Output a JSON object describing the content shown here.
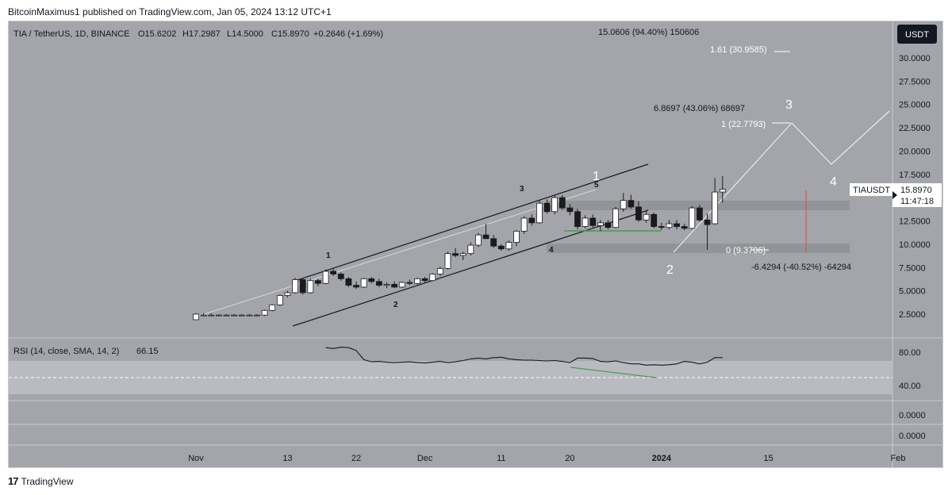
{
  "header": {
    "published": "BitcoinMaximus1 published on TradingView.com, Jan 05, 2024 13:12 UTC+1"
  },
  "symbol": {
    "title": "TIA / TetherUS, 1D, BINANCE",
    "open": "O15.6202",
    "high": "H17.2987",
    "low": "L14.5000",
    "close": "C15.8970",
    "change": "+0.2646 (+1.69%)",
    "currency": "USDT",
    "ticker": "TIAUSDT",
    "price": "15.8970",
    "countdown": "11:47:18"
  },
  "annotations": {
    "range_top": "15.0606 (94.40%) 150606",
    "fib_161": "1.61 (30.9585)",
    "range_mid": "6.8697 (43.06%) 68697",
    "fib_1": "1 (22.7793)",
    "fib_0": "0 (9.3706)",
    "range_down": "-6.4294 (-40.52%) -64294",
    "wave_1": "1",
    "wave_2": "2",
    "wave_3": "3",
    "wave_4": "4",
    "wave_5": "5",
    "big_wave_1": "1",
    "big_wave_2": "2",
    "big_wave_3": "3",
    "big_wave_4": "4"
  },
  "rsi": {
    "label": "RSI (14, close, SMA, 14, 2)",
    "value": "66.15"
  },
  "rsi_axis": [
    "80.00",
    "40.00",
    "0.0000",
    "0.0000"
  ],
  "footer": {
    "brand": "TradingView"
  },
  "colors": {
    "pane": "#a3a5aa",
    "up": "#ffffff",
    "down": "#1b1b1f",
    "rsi_band": "#b9bbc0",
    "zone": "#8e9094",
    "support": "#43a047"
  },
  "chart_data": {
    "type": "candlestick",
    "ylim": [
      0,
      32.5
    ],
    "y_ticks": [
      2.5,
      5,
      7.5,
      10,
      12.5,
      15,
      17.5,
      20,
      22.5,
      25,
      27.5,
      30
    ],
    "y_tick_labels": [
      "2.5000",
      "5.0000",
      "7.5000",
      "10.0000",
      "12.5000",
      "15.0000",
      "17.5000",
      "20.0000",
      "22.5000",
      "25.0000",
      "27.5000",
      "30.0000"
    ],
    "x_ticks": [
      {
        "day": 0,
        "label": "Nov"
      },
      {
        "day": 12,
        "label": "13"
      },
      {
        "day": 21,
        "label": "22"
      },
      {
        "day": 30,
        "label": "Dec"
      },
      {
        "day": 40,
        "label": "11"
      },
      {
        "day": 49,
        "label": "20"
      },
      {
        "day": 61,
        "label": "2024"
      },
      {
        "day": 75,
        "label": "15"
      },
      {
        "day": 92,
        "label": "Feb"
      }
    ],
    "candles": [
      [
        1.9,
        2.6,
        1.9,
        2.5
      ],
      [
        2.4,
        2.6,
        2.3,
        2.4
      ],
      [
        2.4,
        2.6,
        2.3,
        2.4
      ],
      [
        2.4,
        2.5,
        2.3,
        2.4
      ],
      [
        2.4,
        2.5,
        2.3,
        2.4
      ],
      [
        2.4,
        2.5,
        2.3,
        2.4
      ],
      [
        2.4,
        2.5,
        2.3,
        2.4
      ],
      [
        2.4,
        2.5,
        2.3,
        2.4
      ],
      [
        2.4,
        2.5,
        2.3,
        2.4
      ],
      [
        2.4,
        3.0,
        2.3,
        2.9
      ],
      [
        2.9,
        3.6,
        2.8,
        3.5
      ],
      [
        3.5,
        4.6,
        3.4,
        4.5
      ],
      [
        4.5,
        5.0,
        4.3,
        4.8
      ],
      [
        4.8,
        6.4,
        4.7,
        6.2
      ],
      [
        6.2,
        6.4,
        4.6,
        4.8
      ],
      [
        4.8,
        6.3,
        4.7,
        6.1
      ],
      [
        6.1,
        6.3,
        5.5,
        5.8
      ],
      [
        5.8,
        7.3,
        5.7,
        7.1
      ],
      [
        7.1,
        7.4,
        6.6,
        6.8
      ],
      [
        6.8,
        7.0,
        6.1,
        6.3
      ],
      [
        6.3,
        6.5,
        5.4,
        5.6
      ],
      [
        5.6,
        6.0,
        5.2,
        5.4
      ],
      [
        5.4,
        6.4,
        5.3,
        6.3
      ],
      [
        6.3,
        6.5,
        5.8,
        6.0
      ],
      [
        6.0,
        6.3,
        5.4,
        5.6
      ],
      [
        5.6,
        5.9,
        5.3,
        5.7
      ],
      [
        5.7,
        6.0,
        5.3,
        5.4
      ],
      [
        5.4,
        6.0,
        5.3,
        5.9
      ],
      [
        5.9,
        6.2,
        5.6,
        5.8
      ],
      [
        5.8,
        6.4,
        5.7,
        6.3
      ],
      [
        6.3,
        6.5,
        5.9,
        6.1
      ],
      [
        6.1,
        6.9,
        6.0,
        6.8
      ],
      [
        6.8,
        7.6,
        6.6,
        7.4
      ],
      [
        7.4,
        9.2,
        7.3,
        9.0
      ],
      [
        9.0,
        9.6,
        8.6,
        8.8
      ],
      [
        8.8,
        9.2,
        8.3,
        9.0
      ],
      [
        9.0,
        10.2,
        8.8,
        9.9
      ],
      [
        9.9,
        11.2,
        9.7,
        11.0
      ],
      [
        11.0,
        12.2,
        10.7,
        10.6
      ],
      [
        10.6,
        11.0,
        9.6,
        9.8
      ],
      [
        9.8,
        10.0,
        9.3,
        9.5
      ],
      [
        9.5,
        10.4,
        9.3,
        10.2
      ],
      [
        10.2,
        11.5,
        9.8,
        11.4
      ],
      [
        11.4,
        13.0,
        11.1,
        12.8
      ],
      [
        12.8,
        13.2,
        12.0,
        12.3
      ],
      [
        12.3,
        14.7,
        12.2,
        14.4
      ],
      [
        14.4,
        14.8,
        13.3,
        13.5
      ],
      [
        13.5,
        15.3,
        13.2,
        15.0
      ],
      [
        15.0,
        15.3,
        13.7,
        13.9
      ],
      [
        13.9,
        14.3,
        13.1,
        13.5
      ],
      [
        13.5,
        13.8,
        11.6,
        11.9
      ],
      [
        11.9,
        13.1,
        11.7,
        12.8
      ],
      [
        12.8,
        13.2,
        11.8,
        12.0
      ],
      [
        12.0,
        12.6,
        11.4,
        12.3
      ],
      [
        12.3,
        12.6,
        11.6,
        11.8
      ],
      [
        11.8,
        14.0,
        11.7,
        13.8
      ],
      [
        13.8,
        15.5,
        13.5,
        14.7
      ],
      [
        14.7,
        15.3,
        13.8,
        14.0
      ],
      [
        14.0,
        14.6,
        12.4,
        12.6
      ],
      [
        12.6,
        13.6,
        12.3,
        13.2
      ],
      [
        13.2,
        13.4,
        11.7,
        11.9
      ],
      [
        11.9,
        12.3,
        11.5,
        11.8
      ],
      [
        11.8,
        12.6,
        11.6,
        12.2
      ],
      [
        12.2,
        12.6,
        11.6,
        11.9
      ],
      [
        11.9,
        12.2,
        11.5,
        11.7
      ],
      [
        11.7,
        14.1,
        11.6,
        13.9
      ],
      [
        13.9,
        14.2,
        12.4,
        12.6
      ],
      [
        12.6,
        13.3,
        9.4,
        12.1
      ],
      [
        12.2,
        17.1,
        12.1,
        15.6
      ],
      [
        15.6,
        17.3,
        14.5,
        15.9
      ]
    ],
    "rsi": [
      91,
      89,
      92,
      91,
      84,
      62,
      57,
      58,
      56,
      55,
      56,
      57,
      55,
      54,
      56,
      58,
      55,
      57,
      60,
      64,
      66,
      64,
      67,
      68,
      64,
      62,
      61,
      61,
      60,
      59,
      60,
      58,
      55,
      66,
      66,
      65,
      58,
      57,
      59,
      55,
      52,
      52,
      49,
      50,
      49,
      50,
      52,
      58,
      56,
      52,
      56,
      67,
      67
    ]
  }
}
